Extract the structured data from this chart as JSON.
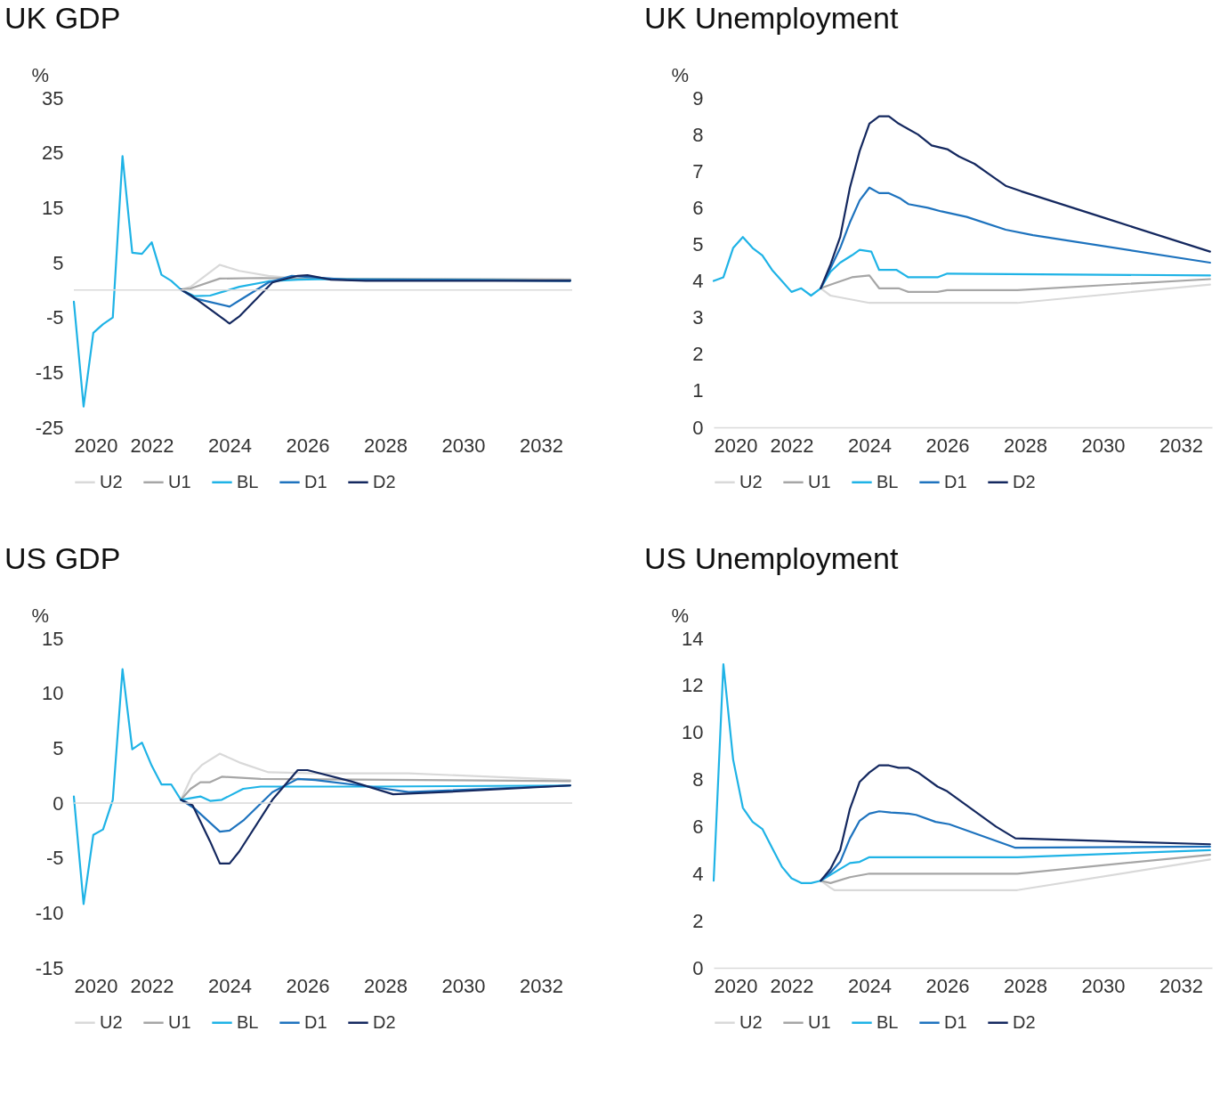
{
  "chart_data": [
    {
      "type": "line",
      "title": "UK GDP",
      "ylabel": "%",
      "xlim": [
        2020,
        2032.8
      ],
      "xticks": [
        2020,
        2022,
        2024,
        2026,
        2028,
        2030,
        2032
      ],
      "ylim": [
        -25,
        35
      ],
      "yticks": [
        -25,
        -15,
        -5,
        5,
        15,
        25,
        35
      ],
      "grid": false,
      "legend": "bottom",
      "ref_lines": [
        {
          "axis": "y",
          "value": 0,
          "color": "#d9d9d9"
        }
      ],
      "series": [
        {
          "name": "U2",
          "color": "#d9d9d9",
          "x": [
            2022.75,
            2023.0,
            2023.75,
            2024.25,
            2025.0,
            2025.75,
            2032.75
          ],
          "values": [
            0.1,
            0.6,
            4.6,
            3.5,
            2.6,
            2.1,
            2.0
          ]
        },
        {
          "name": "U1",
          "color": "#a6a6a6",
          "x": [
            2022.75,
            2023.0,
            2023.75,
            2024.8,
            2025.75,
            2032.75
          ],
          "values": [
            0.1,
            0.3,
            2.1,
            2.2,
            2.1,
            1.9
          ]
        },
        {
          "name": "BL",
          "color": "#1fb3e6",
          "x": [
            2020.0,
            2020.25,
            2020.5,
            2020.75,
            2021.0,
            2021.25,
            2021.5,
            2021.75,
            2022.0,
            2022.25,
            2022.5,
            2022.75,
            2023.1,
            2023.5,
            2024.25,
            2025.0,
            2025.75,
            2026.5,
            2032.75
          ],
          "values": [
            -2.1,
            -21.2,
            -7.8,
            -6.2,
            -5.0,
            24.4,
            6.8,
            6.6,
            8.7,
            2.8,
            1.7,
            0.1,
            -1.1,
            -1.0,
            0.6,
            1.6,
            1.9,
            2.0,
            1.7
          ]
        },
        {
          "name": "D1",
          "color": "#1e73be",
          "x": [
            2022.75,
            2023.1,
            2024.0,
            2024.25,
            2025.0,
            2025.6,
            2026.2,
            2027.0,
            2032.75
          ],
          "values": [
            0.1,
            -1.5,
            -3.0,
            -1.9,
            1.4,
            2.6,
            2.3,
            1.9,
            1.7
          ]
        },
        {
          "name": "D2",
          "color": "#14285f",
          "x": [
            2022.75,
            2023.0,
            2024.0,
            2024.25,
            2025.1,
            2025.75,
            2026.0,
            2026.6,
            2027.5,
            2032.75
          ],
          "values": [
            0.1,
            -0.9,
            -6.1,
            -4.8,
            1.4,
            2.6,
            2.7,
            1.9,
            1.7,
            1.7
          ]
        }
      ]
    },
    {
      "type": "line",
      "title": "UK Unemployment",
      "ylabel": "%",
      "xlim": [
        2020,
        2032.8
      ],
      "xticks": [
        2020,
        2022,
        2024,
        2026,
        2028,
        2030,
        2032
      ],
      "ylim": [
        0,
        9
      ],
      "yticks": [
        0,
        1,
        2,
        3,
        4,
        5,
        6,
        7,
        8,
        9
      ],
      "grid": false,
      "legend": "bottom",
      "series": [
        {
          "name": "U2",
          "color": "#d9d9d9",
          "x": [
            2022.75,
            2023.0,
            2024.0,
            2027.8,
            2032.75
          ],
          "values": [
            3.8,
            3.6,
            3.4,
            3.4,
            3.9
          ]
        },
        {
          "name": "U1",
          "color": "#a6a6a6",
          "x": [
            2022.75,
            2023.0,
            2023.55,
            2024.0,
            2024.25,
            2024.75,
            2025.0,
            2025.75,
            2026.0,
            2027.8,
            2032.75
          ],
          "values": [
            3.8,
            3.9,
            4.1,
            4.15,
            3.8,
            3.8,
            3.7,
            3.7,
            3.75,
            3.75,
            4.05
          ]
        },
        {
          "name": "BL",
          "color": "#1fb3e6",
          "x": [
            2020.0,
            2020.25,
            2020.5,
            2020.75,
            2021.0,
            2021.25,
            2021.5,
            2021.75,
            2022.0,
            2022.25,
            2022.5,
            2022.75,
            2023.0,
            2023.25,
            2023.55,
            2023.75,
            2024.05,
            2024.25,
            2024.7,
            2025.0,
            2025.75,
            2026.0,
            2032.75
          ],
          "values": [
            4.0,
            4.1,
            4.9,
            5.2,
            4.9,
            4.7,
            4.3,
            4.0,
            3.7,
            3.8,
            3.6,
            3.8,
            4.25,
            4.5,
            4.7,
            4.85,
            4.8,
            4.3,
            4.3,
            4.1,
            4.1,
            4.2,
            4.15
          ]
        },
        {
          "name": "D1",
          "color": "#1e73be",
          "x": [
            2022.75,
            2023.0,
            2023.25,
            2023.5,
            2023.75,
            2024.0,
            2024.25,
            2024.5,
            2024.8,
            2025.0,
            2025.5,
            2025.85,
            2026.5,
            2027.5,
            2028.2,
            2032.75
          ],
          "values": [
            3.8,
            4.35,
            4.9,
            5.6,
            6.2,
            6.55,
            6.4,
            6.4,
            6.25,
            6.1,
            6.0,
            5.9,
            5.75,
            5.4,
            5.25,
            4.5
          ]
        },
        {
          "name": "D2",
          "color": "#14285f",
          "x": [
            2022.75,
            2023.0,
            2023.25,
            2023.5,
            2023.75,
            2024.0,
            2024.25,
            2024.5,
            2024.75,
            2025.0,
            2025.25,
            2025.6,
            2026.0,
            2026.3,
            2026.7,
            2027.1,
            2027.5,
            2027.9,
            2030.1,
            2032.75
          ],
          "values": [
            3.8,
            4.45,
            5.2,
            6.55,
            7.55,
            8.3,
            8.5,
            8.5,
            8.3,
            8.15,
            8.0,
            7.7,
            7.6,
            7.4,
            7.2,
            6.9,
            6.6,
            6.45,
            5.7,
            4.8
          ]
        }
      ]
    },
    {
      "type": "line",
      "title": "US GDP",
      "ylabel": "%",
      "xlim": [
        2020,
        2032.8
      ],
      "xticks": [
        2020,
        2022,
        2024,
        2026,
        2028,
        2030,
        2032
      ],
      "ylim": [
        -15,
        15
      ],
      "yticks": [
        -15,
        -10,
        -5,
        0,
        5,
        10,
        15
      ],
      "grid": false,
      "legend": "bottom",
      "ref_lines": [
        {
          "axis": "y",
          "value": 0,
          "color": "#d9d9d9"
        }
      ],
      "series": [
        {
          "name": "U2",
          "color": "#d9d9d9",
          "x": [
            2022.75,
            2023.05,
            2023.3,
            2023.75,
            2024.25,
            2025.0,
            2026.2,
            2028.6,
            2032.75
          ],
          "values": [
            0.3,
            2.6,
            3.5,
            4.5,
            3.7,
            2.8,
            2.7,
            2.7,
            2.1
          ]
        },
        {
          "name": "U1",
          "color": "#a6a6a6",
          "x": [
            2022.75,
            2023.0,
            2023.25,
            2023.5,
            2023.8,
            2024.8,
            2032.75
          ],
          "values": [
            0.3,
            1.3,
            1.9,
            1.9,
            2.4,
            2.2,
            2.0
          ]
        },
        {
          "name": "BL",
          "color": "#1fb3e6",
          "x": [
            2020.0,
            2020.25,
            2020.5,
            2020.75,
            2021.0,
            2021.25,
            2021.5,
            2021.75,
            2022.0,
            2022.25,
            2022.5,
            2022.75,
            2023.25,
            2023.5,
            2023.8,
            2024.35,
            2024.8,
            2027.6,
            2032.75
          ],
          "values": [
            0.6,
            -9.2,
            -2.9,
            -2.4,
            0.3,
            12.2,
            4.9,
            5.5,
            3.4,
            1.7,
            1.7,
            0.3,
            0.6,
            0.2,
            0.3,
            1.3,
            1.5,
            1.5,
            1.6
          ]
        },
        {
          "name": "D1",
          "color": "#1e73be",
          "x": [
            2022.75,
            2023.1,
            2023.75,
            2024.0,
            2024.35,
            2025.1,
            2025.75,
            2026.2,
            2027.6,
            2028.6,
            2032.75
          ],
          "values": [
            0.3,
            -0.5,
            -2.6,
            -2.5,
            -1.6,
            1.0,
            2.2,
            2.1,
            1.5,
            1.0,
            1.6
          ]
        },
        {
          "name": "D2",
          "color": "#14285f",
          "x": [
            2022.75,
            2023.05,
            2023.5,
            2023.75,
            2024.0,
            2024.25,
            2025.1,
            2025.75,
            2026.0,
            2027.1,
            2028.2,
            2029.5,
            2032.75
          ],
          "values": [
            0.3,
            -0.2,
            -3.5,
            -5.5,
            -5.5,
            -4.4,
            0.3,
            3.0,
            3.0,
            2.0,
            0.8,
            1.0,
            1.6
          ]
        }
      ]
    },
    {
      "type": "line",
      "title": "US Unemployment",
      "ylabel": "%",
      "xlim": [
        2020,
        2032.8
      ],
      "xticks": [
        2020,
        2022,
        2024,
        2026,
        2028,
        2030,
        2032
      ],
      "ylim": [
        0,
        14
      ],
      "yticks": [
        0,
        2,
        4,
        6,
        8,
        10,
        12,
        14
      ],
      "grid": false,
      "legend": "bottom",
      "series": [
        {
          "name": "U2",
          "color": "#d9d9d9",
          "x": [
            2022.75,
            2023.0,
            2023.1,
            2027.8,
            2032.75
          ],
          "values": [
            3.7,
            3.4,
            3.3,
            3.3,
            4.6
          ]
        },
        {
          "name": "U1",
          "color": "#a6a6a6",
          "x": [
            2022.75,
            2023.0,
            2023.5,
            2024.0,
            2027.8,
            2032.75
          ],
          "values": [
            3.7,
            3.6,
            3.85,
            4.0,
            4.0,
            4.8
          ]
        },
        {
          "name": "BL",
          "color": "#1fb3e6",
          "x": [
            2020.0,
            2020.25,
            2020.5,
            2020.75,
            2021.0,
            2021.25,
            2021.5,
            2021.75,
            2022.0,
            2022.25,
            2022.5,
            2022.75,
            2023.0,
            2023.5,
            2023.75,
            2024.0,
            2027.8,
            2032.75
          ],
          "values": [
            3.7,
            12.9,
            8.85,
            6.8,
            6.2,
            5.9,
            5.1,
            4.3,
            3.8,
            3.6,
            3.6,
            3.7,
            3.95,
            4.45,
            4.5,
            4.7,
            4.7,
            5.0
          ]
        },
        {
          "name": "D1",
          "color": "#1e73be",
          "x": [
            2022.75,
            2023.0,
            2023.25,
            2023.5,
            2023.75,
            2024.0,
            2024.25,
            2024.55,
            2025.0,
            2025.2,
            2025.7,
            2026.05,
            2027.75,
            2032.75
          ],
          "values": [
            3.7,
            4.05,
            4.5,
            5.5,
            6.25,
            6.55,
            6.65,
            6.6,
            6.55,
            6.5,
            6.2,
            6.1,
            5.1,
            5.15
          ]
        },
        {
          "name": "D2",
          "color": "#14285f",
          "x": [
            2022.75,
            2023.0,
            2023.25,
            2023.5,
            2023.75,
            2024.0,
            2024.25,
            2024.5,
            2024.75,
            2025.0,
            2025.25,
            2025.75,
            2026.0,
            2027.25,
            2027.75,
            2032.75
          ],
          "values": [
            3.7,
            4.2,
            5.0,
            6.75,
            7.9,
            8.3,
            8.6,
            8.6,
            8.5,
            8.5,
            8.3,
            7.7,
            7.5,
            6.0,
            5.5,
            5.25
          ]
        }
      ]
    }
  ]
}
